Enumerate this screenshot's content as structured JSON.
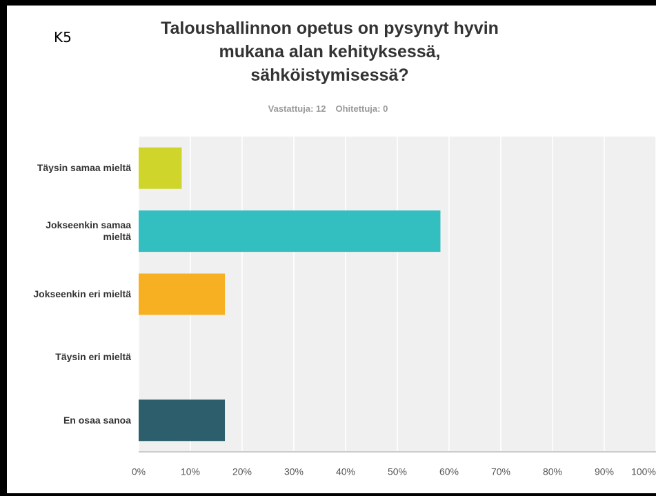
{
  "chart_data": {
    "type": "bar",
    "orientation": "horizontal",
    "tag": "K5",
    "title": "Taloushallinnon opetus on pysynyt hyvin mukana alan kehityksessä, sähköistymisessä?",
    "subtitle": [
      "Vastattuja: 12",
      "Ohitettuja: 0"
    ],
    "categories": [
      "Täysin samaa mieltä",
      "Jokseenkin samaa mieltä",
      "Jokseenkin eri mieltä",
      "Täysin eri mieltä",
      "En osaa sanoa"
    ],
    "values": [
      8.33,
      58.33,
      16.67,
      0,
      16.67
    ],
    "colors": [
      "#cfd52a",
      "#33bec0",
      "#f7b022",
      "#9b9b9b",
      "#2c5f6b"
    ],
    "xlim": [
      0,
      100
    ],
    "xticks": [
      {
        "value": 0,
        "label": "0%"
      },
      {
        "value": 10,
        "label": "10%"
      },
      {
        "value": 20,
        "label": "20%"
      },
      {
        "value": 30,
        "label": "30%"
      },
      {
        "value": 40,
        "label": "40%"
      },
      {
        "value": 50,
        "label": "50%"
      },
      {
        "value": 60,
        "label": "60%"
      },
      {
        "value": 70,
        "label": "70%"
      },
      {
        "value": 80,
        "label": "80%"
      },
      {
        "value": 90,
        "label": "90%"
      },
      {
        "value": 100,
        "label": "100%"
      }
    ],
    "grid": true
  }
}
